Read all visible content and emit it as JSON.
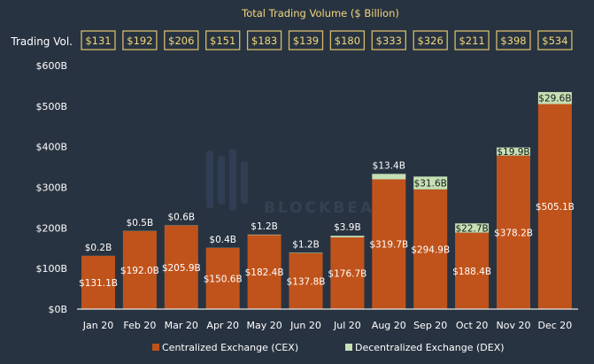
{
  "chart_data": {
    "type": "bar",
    "stacked": true,
    "title": "Total Trading Volume ($ Billion)",
    "row_label": "Trading Vol.",
    "totals": [
      "$131",
      "$192",
      "$206",
      "$151",
      "$183",
      "$139",
      "$180",
      "$333",
      "$326",
      "$211",
      "$398",
      "$534"
    ],
    "categories": [
      "Jan 20",
      "Feb 20",
      "Mar 20",
      "Apr 20",
      "May 20",
      "Jun 20",
      "Jul 20",
      "Aug 20",
      "Sep 20",
      "Oct 20",
      "Nov 20",
      "Dec 20"
    ],
    "series": [
      {
        "name": "Centralized Exchange (CEX)",
        "color": "#c0531b",
        "values": [
          131.1,
          192.0,
          205.9,
          150.6,
          182.4,
          137.8,
          176.7,
          319.7,
          294.9,
          188.4,
          378.2,
          505.1
        ],
        "labels": [
          "$131.1B",
          "$192.0B",
          "$205.9B",
          "$150.6B",
          "$182.4B",
          "$137.8B",
          "$176.7B",
          "$319.7B",
          "$294.9B",
          "$188.4B",
          "$378.2B",
          "$505.1B"
        ]
      },
      {
        "name": "Decentralized Exchange (DEX)",
        "color": "#c5e0b4",
        "values": [
          0.2,
          0.5,
          0.6,
          0.4,
          1.2,
          1.2,
          3.9,
          13.4,
          31.6,
          22.7,
          19.9,
          29.6
        ],
        "labels": [
          "$0.2B",
          "$0.5B",
          "$0.6B",
          "$0.4B",
          "$1.2B",
          "$1.2B",
          "$3.9B",
          "$13.4B",
          "$31.6B",
          "$22.7B",
          "$19.9B",
          "$29.6B"
        ]
      }
    ],
    "yticks": [
      "$0B",
      "$100B",
      "$200B",
      "$300B",
      "$400B",
      "$500B",
      "$600B"
    ],
    "ylim": [
      0,
      600
    ],
    "xlabel": "",
    "ylabel": "",
    "grid": false,
    "legend": "bottom",
    "watermark": "BLOCKBEATS",
    "colors": {
      "background": "#283341",
      "title": "#f2d77a",
      "box_border": "#d4bb6a",
      "text": "#ffffff"
    }
  }
}
